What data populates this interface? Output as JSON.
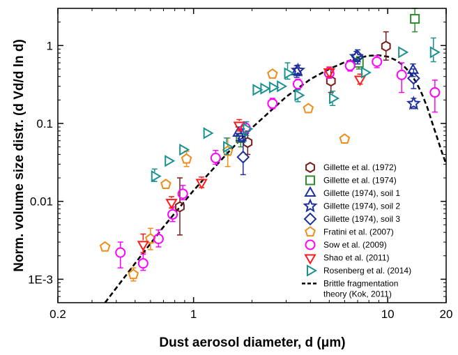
{
  "chart_data": {
    "type": "scatter",
    "xlabel": "Dust aerosol diameter, d (μm)",
    "ylabel": "Norm. volume size distr. (d Vd/d ln d)",
    "xscale": "log",
    "yscale": "log",
    "xlim": [
      0.2,
      20
    ],
    "ylim": [
      0.0005,
      3
    ],
    "x_ticks": [
      {
        "value": 0.2,
        "label": "0.2"
      },
      {
        "value": 1,
        "label": "1"
      },
      {
        "value": 10,
        "label": "10"
      },
      {
        "value": 20,
        "label": "20"
      }
    ],
    "y_ticks": [
      {
        "value": 0.001,
        "label": "1E-3"
      },
      {
        "value": 0.01,
        "label": "0.01"
      },
      {
        "value": 0.1,
        "label": "0.1"
      },
      {
        "value": 1,
        "label": "1"
      }
    ],
    "grid": false,
    "legend_position": "bottom-right",
    "series": [
      {
        "name": "Gillette et al. (1972)",
        "marker": "hexagon",
        "color": "#7b1a1a",
        "points": [
          {
            "x": 0.85,
            "y": 0.0085,
            "lo": 0.0037,
            "hi": 0.02
          },
          {
            "x": 1.9,
            "y": 0.057,
            "lo": 0.04,
            "hi": 0.08
          },
          {
            "x": 5.1,
            "y": 0.35,
            "lo": 0.25,
            "hi": 0.5
          },
          {
            "x": 9.8,
            "y": 0.98,
            "lo": 0.65,
            "hi": 1.5
          }
        ]
      },
      {
        "name": "Gillette et al. (1974)",
        "marker": "square",
        "color": "#2e8b2e",
        "points": [
          {
            "x": 1.75,
            "y": 0.065,
            "lo": 0.05,
            "hi": 0.085
          },
          {
            "x": 7.1,
            "y": 0.6,
            "lo": 0.5,
            "hi": 0.72
          },
          {
            "x": 13.8,
            "y": 2.2,
            "lo": 1.5,
            "hi": 3.0
          }
        ]
      },
      {
        "name": "Gillette (1974), soil 1",
        "marker": "triangle-up",
        "color": "#1f2f9e",
        "points": [
          {
            "x": 1.7,
            "y": 0.075,
            "lo": 0.06,
            "hi": 0.09
          },
          {
            "x": 3.4,
            "y": 0.46,
            "lo": 0.39,
            "hi": 0.55
          },
          {
            "x": 13.5,
            "y": 0.48,
            "lo": 0.4,
            "hi": 0.58
          }
        ]
      },
      {
        "name": "Gillette (1974), soil 2",
        "marker": "star",
        "color": "#1f2f9e",
        "points": [
          {
            "x": 1.78,
            "y": 0.07,
            "lo": 0.058,
            "hi": 0.085
          },
          {
            "x": 3.45,
            "y": 0.48,
            "lo": 0.41,
            "hi": 0.56
          },
          {
            "x": 6.9,
            "y": 0.72,
            "lo": 0.62,
            "hi": 0.84
          },
          {
            "x": 13.6,
            "y": 0.18,
            "lo": 0.155,
            "hi": 0.21
          }
        ]
      },
      {
        "name": "Gillette (1974), soil 3",
        "marker": "diamond",
        "color": "#1f2f9e",
        "points": [
          {
            "x": 1.8,
            "y": 0.037,
            "lo": 0.022,
            "hi": 0.06
          },
          {
            "x": 7.0,
            "y": 0.72,
            "lo": 0.58,
            "hi": 0.88
          },
          {
            "x": 13.6,
            "y": 0.38,
            "lo": 0.28,
            "hi": 0.5
          }
        ]
      },
      {
        "name": "Fratini et al. (2007)",
        "marker": "pentagon",
        "color": "#f08c1a",
        "points": [
          {
            "x": 0.35,
            "y": 0.0026
          },
          {
            "x": 0.49,
            "y": 0.00115,
            "lo": 0.00095,
            "hi": 0.0014
          },
          {
            "x": 0.6,
            "y": 0.0033,
            "lo": 0.0024,
            "hi": 0.0045
          },
          {
            "x": 0.72,
            "y": 0.0165
          },
          {
            "x": 0.92,
            "y": 0.035,
            "lo": 0.028,
            "hi": 0.044
          },
          {
            "x": 1.5,
            "y": 0.044,
            "lo": 0.028,
            "hi": 0.065
          },
          {
            "x": 2.55,
            "y": 0.43
          },
          {
            "x": 3.9,
            "y": 0.155
          },
          {
            "x": 6.0,
            "y": 0.063
          }
        ]
      },
      {
        "name": "Sow et al. (2009)",
        "marker": "circle",
        "color": "#ff00ff",
        "points": [
          {
            "x": 0.42,
            "y": 0.0022,
            "lo": 0.0014,
            "hi": 0.003
          },
          {
            "x": 0.55,
            "y": 0.0016,
            "lo": 0.0013,
            "hi": 0.0021
          },
          {
            "x": 0.66,
            "y": 0.0033,
            "lo": 0.0026,
            "hi": 0.0043
          },
          {
            "x": 0.78,
            "y": 0.0068,
            "lo": 0.0055,
            "hi": 0.0085
          },
          {
            "x": 0.88,
            "y": 0.0125,
            "lo": 0.0105,
            "hi": 0.016
          },
          {
            "x": 1.3,
            "y": 0.036,
            "lo": 0.03,
            "hi": 0.045
          },
          {
            "x": 1.85,
            "y": 0.088,
            "lo": 0.075,
            "hi": 0.105
          },
          {
            "x": 2.55,
            "y": 0.18,
            "lo": 0.155,
            "hi": 0.21
          },
          {
            "x": 3.45,
            "y": 0.32,
            "lo": 0.28,
            "hi": 0.37
          },
          {
            "x": 5.0,
            "y": 0.44,
            "lo": 0.38,
            "hi": 0.52
          },
          {
            "x": 6.4,
            "y": 0.55,
            "lo": 0.47,
            "hi": 0.64
          },
          {
            "x": 8.8,
            "y": 0.62,
            "lo": 0.52,
            "hi": 0.74
          },
          {
            "x": 11.8,
            "y": 0.42,
            "lo": 0.25,
            "hi": 0.6
          },
          {
            "x": 17.5,
            "y": 0.25,
            "lo": 0.14,
            "hi": 0.36
          }
        ]
      },
      {
        "name": "Shao et al. (2011)",
        "marker": "triangle-down",
        "color": "#ff1a1a",
        "points": [
          {
            "x": 0.55,
            "y": 0.0028,
            "lo": 0.0022,
            "hi": 0.0038
          },
          {
            "x": 0.77,
            "y": 0.0097,
            "lo": 0.0082,
            "hi": 0.0115
          },
          {
            "x": 1.1,
            "y": 0.0175,
            "lo": 0.015,
            "hi": 0.0205
          },
          {
            "x": 1.72,
            "y": 0.095,
            "lo": 0.08,
            "hi": 0.112
          },
          {
            "x": 5.0,
            "y": 0.46,
            "lo": 0.4,
            "hi": 0.53
          },
          {
            "x": 7.2,
            "y": 0.37,
            "lo": 0.32,
            "hi": 0.43
          }
        ]
      },
      {
        "name": "Rosenberg et al. (2014)",
        "marker": "triangle-right",
        "color": "#1a9090",
        "points": [
          {
            "x": 0.63,
            "y": 0.021,
            "lo": 0.018,
            "hi": 0.026
          },
          {
            "x": 0.74,
            "y": 0.033
          },
          {
            "x": 0.88,
            "y": 0.046
          },
          {
            "x": 1.17,
            "y": 0.075
          },
          {
            "x": 1.48,
            "y": 0.05,
            "lo": 0.04,
            "hi": 0.065
          },
          {
            "x": 1.87,
            "y": 0.085,
            "lo": 0.07,
            "hi": 0.105
          },
          {
            "x": 2.1,
            "y": 0.27
          },
          {
            "x": 2.3,
            "y": 0.28
          },
          {
            "x": 2.55,
            "y": 0.29
          },
          {
            "x": 2.8,
            "y": 0.3
          },
          {
            "x": 3.05,
            "y": 0.44,
            "lo": 0.37,
            "hi": 0.6
          },
          {
            "x": 3.45,
            "y": 0.23,
            "lo": 0.19,
            "hi": 0.27
          },
          {
            "x": 5.2,
            "y": 0.21,
            "lo": 0.17,
            "hi": 0.26
          },
          {
            "x": 7.6,
            "y": 0.45
          },
          {
            "x": 11.8,
            "y": 0.82
          },
          {
            "x": 17.2,
            "y": 0.82,
            "lo": 0.62,
            "hi": 1.25
          }
        ]
      },
      {
        "name": "Brittle fragmentation theory (Kok, 2011)",
        "marker": "dashed-line",
        "color": "#000000",
        "legend_lines": [
          "Brittle fragmentation",
          "theory (Kok, 2011)"
        ],
        "curve": [
          {
            "x": 0.35,
            "y": 0.0005
          },
          {
            "x": 0.5,
            "y": 0.0016
          },
          {
            "x": 0.7,
            "y": 0.0047
          },
          {
            "x": 1.0,
            "y": 0.0138
          },
          {
            "x": 1.5,
            "y": 0.042
          },
          {
            "x": 2.0,
            "y": 0.088
          },
          {
            "x": 3.0,
            "y": 0.22
          },
          {
            "x": 4.0,
            "y": 0.37
          },
          {
            "x": 5.0,
            "y": 0.5
          },
          {
            "x": 6.0,
            "y": 0.61
          },
          {
            "x": 7.0,
            "y": 0.69
          },
          {
            "x": 8.0,
            "y": 0.74
          },
          {
            "x": 9.0,
            "y": 0.75
          },
          {
            "x": 10.0,
            "y": 0.72
          },
          {
            "x": 11.0,
            "y": 0.65
          },
          {
            "x": 12.0,
            "y": 0.56
          },
          {
            "x": 13.0,
            "y": 0.45
          },
          {
            "x": 14.0,
            "y": 0.34
          },
          {
            "x": 15.0,
            "y": 0.24
          },
          {
            "x": 16.0,
            "y": 0.16
          },
          {
            "x": 17.0,
            "y": 0.1
          },
          {
            "x": 18.0,
            "y": 0.065
          },
          {
            "x": 19.0,
            "y": 0.043
          },
          {
            "x": 20.0,
            "y": 0.03
          }
        ]
      }
    ]
  }
}
